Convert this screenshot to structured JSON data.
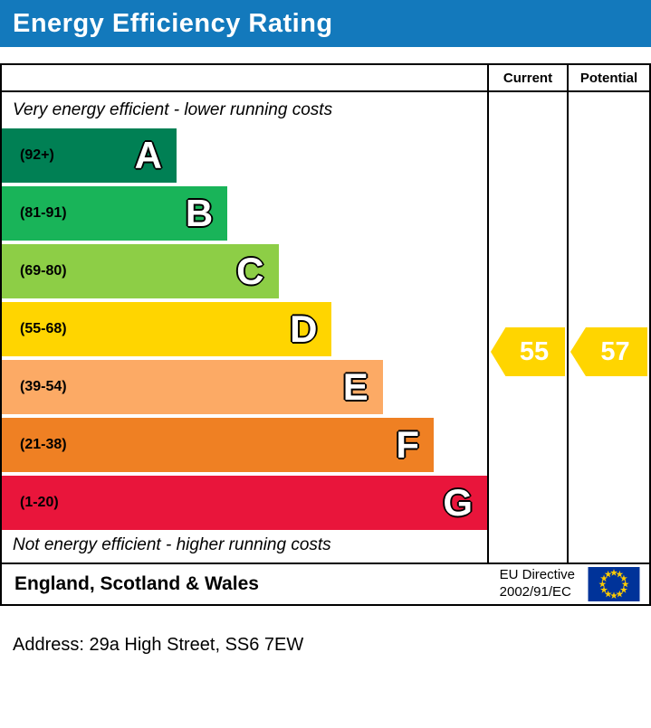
{
  "title_bar": {
    "label": "Energy Efficiency Rating",
    "bg_color": "#1379bc",
    "text_color": "#ffffff"
  },
  "chart_data": {
    "type": "bar",
    "title": "Energy Efficiency Rating",
    "top_note": "Very energy efficient - lower running costs",
    "bottom_note": "Not energy efficient - higher running costs",
    "columns": [
      "Current",
      "Potential"
    ],
    "bands": [
      {
        "letter": "A",
        "range_label": "(92+)",
        "color": "#008054",
        "width_pct": 36
      },
      {
        "letter": "B",
        "range_label": "(81-91)",
        "color": "#19b459",
        "width_pct": 46.5
      },
      {
        "letter": "C",
        "range_label": "(69-80)",
        "color": "#8dce46",
        "width_pct": 57
      },
      {
        "letter": "D",
        "range_label": "(55-68)",
        "color": "#ffd500",
        "width_pct": 68
      },
      {
        "letter": "E",
        "range_label": "(39-54)",
        "color": "#fcaa65",
        "width_pct": 78.5
      },
      {
        "letter": "F",
        "range_label": "(21-38)",
        "color": "#ef8023",
        "width_pct": 89
      },
      {
        "letter": "G",
        "range_label": "(1-20)",
        "color": "#e9153b",
        "width_pct": 100
      }
    ],
    "current": {
      "value": 55,
      "band": "D",
      "arrow_color": "#ffd500"
    },
    "potential": {
      "value": 57,
      "band": "D",
      "arrow_color": "#ffd500"
    }
  },
  "footer": {
    "region_label": "England, Scotland & Wales",
    "directive_line1": "EU Directive",
    "directive_line2": "2002/91/EC",
    "eu_flag": {
      "bg": "#003399",
      "star_color": "#ffcc00"
    }
  },
  "address": "Address: 29a High Street, SS6 7EW"
}
